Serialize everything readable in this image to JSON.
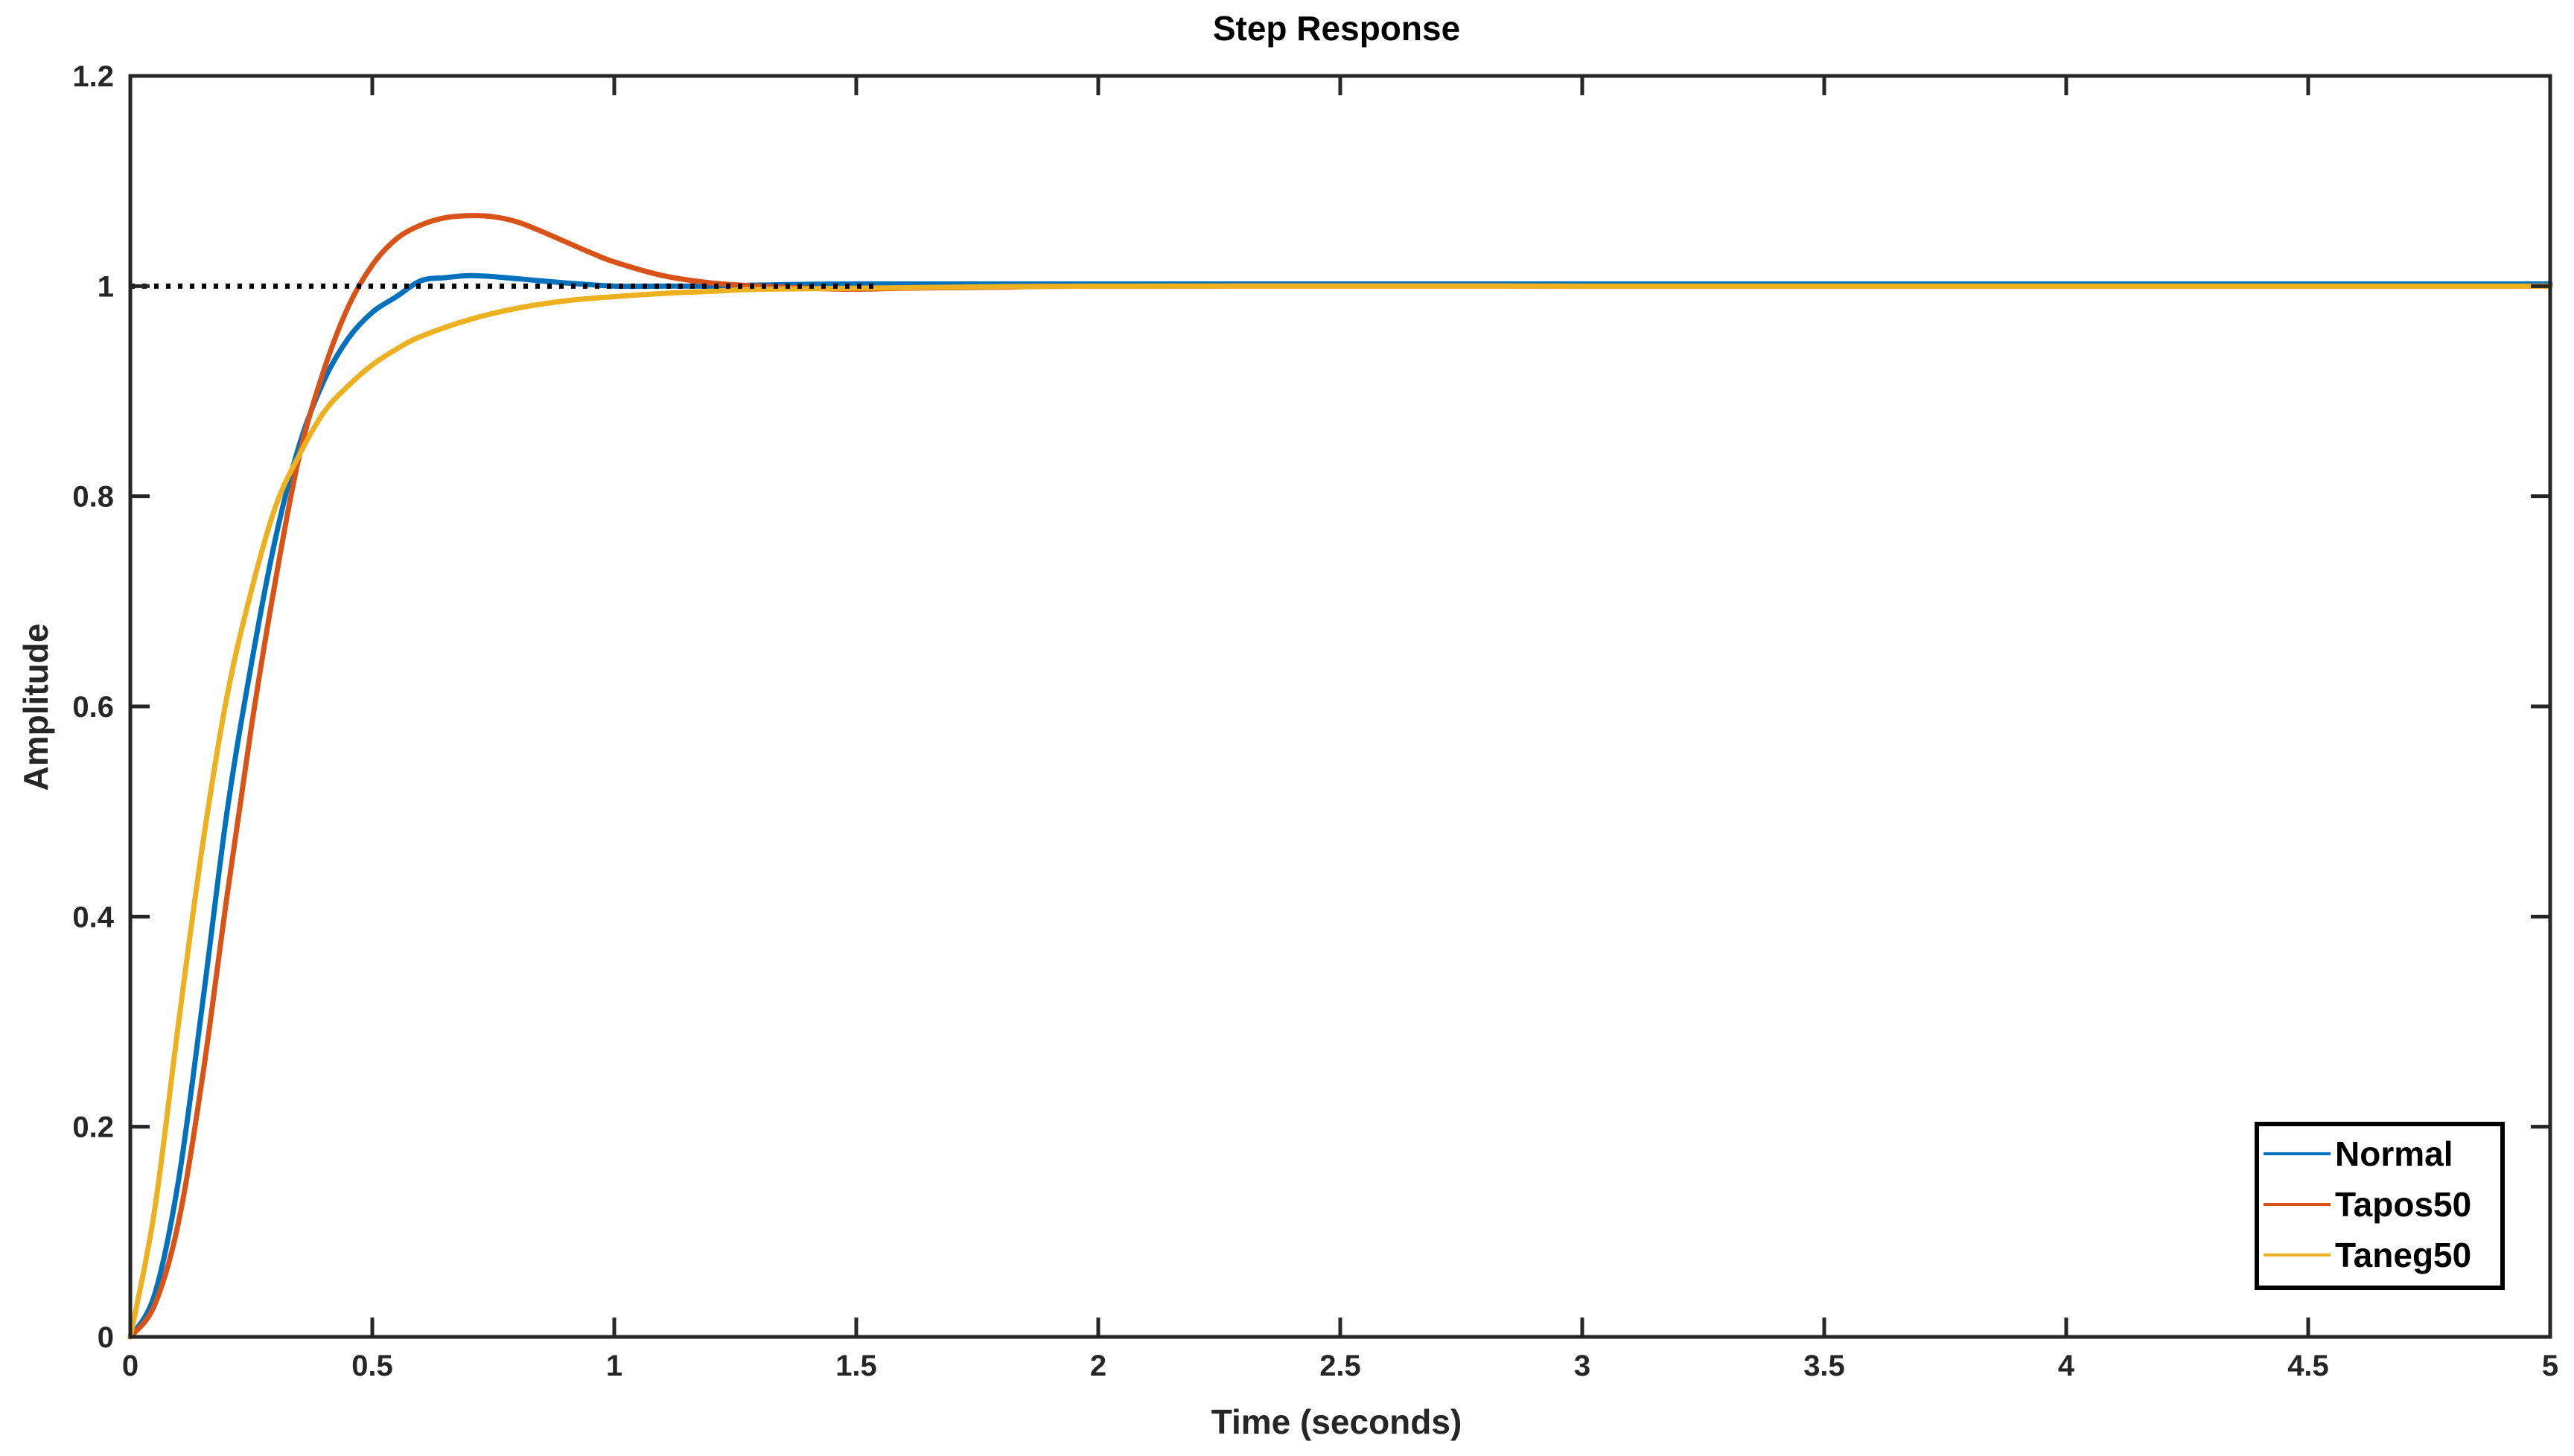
{
  "chart_data": {
    "type": "line",
    "title": "Step Response",
    "xlabel": "Time (seconds)",
    "ylabel": "Amplitude",
    "xlim": [
      0,
      5
    ],
    "ylim": [
      0,
      1.2
    ],
    "xticks": [
      0,
      0.5,
      1,
      1.5,
      2,
      2.5,
      3,
      3.5,
      4,
      4.5,
      5
    ],
    "xtick_labels": [
      "0",
      "0.5",
      "1",
      "1.5",
      "2",
      "2.5",
      "3",
      "3.5",
      "4",
      "4.5",
      "5"
    ],
    "yticks": [
      0,
      0.2,
      0.4,
      0.6,
      0.8,
      1,
      1.2
    ],
    "ytick_labels": [
      "0",
      "0.2",
      "0.4",
      "0.6",
      "0.8",
      "1",
      "1.2"
    ],
    "grid": false,
    "legend_position": "bottom-right",
    "reference_line": {
      "y": 1,
      "style": "dotted",
      "color": "#000000"
    },
    "series": [
      {
        "name": "Normal",
        "color": "#0072BD",
        "x": [
          0,
          0.05,
          0.1,
          0.15,
          0.2,
          0.25,
          0.3,
          0.35,
          0.4,
          0.45,
          0.5,
          0.55,
          0.6,
          0.65,
          0.7,
          0.75,
          0.8,
          0.9,
          1.0,
          1.1,
          1.2,
          1.3,
          1.5,
          2,
          3,
          4,
          5
        ],
        "y": [
          0,
          0.04,
          0.15,
          0.32,
          0.5,
          0.64,
          0.76,
          0.85,
          0.91,
          0.95,
          0.975,
          0.99,
          1.005,
          1.008,
          1.01,
          1.009,
          1.007,
          1.003,
          1.0,
          1.0,
          1.0,
          1.001,
          1.002,
          1.002,
          1.002,
          1.002,
          1.002
        ]
      },
      {
        "name": "Tapos50",
        "color": "#D95319",
        "x": [
          0,
          0.05,
          0.1,
          0.15,
          0.2,
          0.25,
          0.3,
          0.35,
          0.4,
          0.45,
          0.5,
          0.55,
          0.6,
          0.65,
          0.7,
          0.75,
          0.8,
          0.85,
          0.9,
          0.95,
          1.0,
          1.1,
          1.2,
          1.3,
          1.4,
          1.5,
          1.6,
          1.8,
          2,
          3,
          4,
          5
        ],
        "y": [
          0,
          0.03,
          0.11,
          0.25,
          0.42,
          0.58,
          0.72,
          0.84,
          0.92,
          0.98,
          1.02,
          1.045,
          1.058,
          1.065,
          1.067,
          1.066,
          1.061,
          1.052,
          1.042,
          1.032,
          1.023,
          1.01,
          1.003,
          1.0,
          0.998,
          0.997,
          0.998,
          0.999,
          1.0,
          1.0,
          1.0,
          1.0
        ]
      },
      {
        "name": "Taneg50",
        "color": "#EDB120",
        "x": [
          0,
          0.05,
          0.1,
          0.15,
          0.2,
          0.25,
          0.3,
          0.35,
          0.4,
          0.45,
          0.5,
          0.55,
          0.6,
          0.7,
          0.8,
          0.9,
          1.0,
          1.1,
          1.2,
          1.3,
          1.5,
          1.7,
          2,
          3,
          4,
          5
        ],
        "y": [
          0,
          0.12,
          0.3,
          0.47,
          0.61,
          0.71,
          0.79,
          0.84,
          0.88,
          0.905,
          0.925,
          0.94,
          0.952,
          0.968,
          0.979,
          0.986,
          0.99,
          0.993,
          0.995,
          0.997,
          0.998,
          0.999,
          1.0,
          1.0,
          1.0,
          1.0
        ]
      }
    ]
  }
}
